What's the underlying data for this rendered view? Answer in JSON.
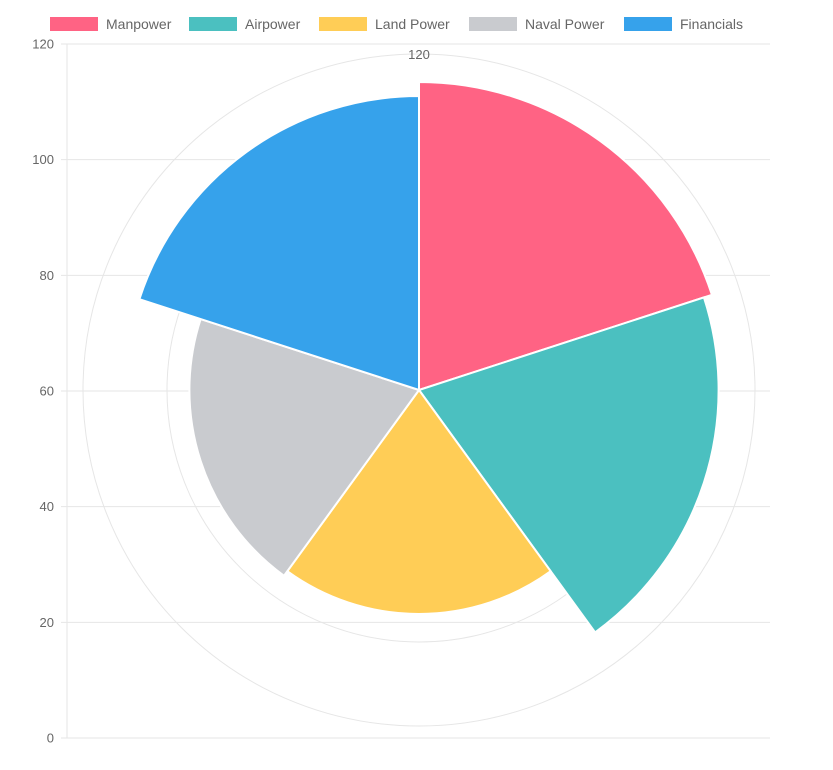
{
  "chart_data": {
    "type": "polarArea",
    "categories": [
      "Manpower",
      "Airpower",
      "Land Power",
      "Naval Power",
      "Financials"
    ],
    "values": [
      110,
      107,
      80,
      82,
      105
    ],
    "colors": [
      "#ff6384",
      "#4bc0c0",
      "#ffcd56",
      "#c9cbcf",
      "#36a2eb"
    ],
    "legend": [
      "Manpower",
      "Airpower",
      "Land Power",
      "Naval Power",
      "Financials"
    ],
    "legend_position": "top",
    "radial_max": 120,
    "radial_tick_label": "120",
    "y_axis": {
      "ylim": [
        0,
        120
      ],
      "ticks": [
        "0",
        "20",
        "40",
        "60",
        "80",
        "100",
        "120"
      ]
    },
    "grid": true
  }
}
